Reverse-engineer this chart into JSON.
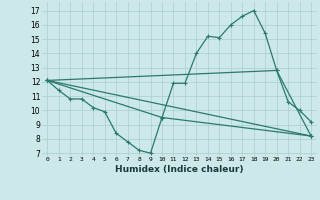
{
  "xlabel": "Humidex (Indice chaleur)",
  "xlim": [
    -0.5,
    23.5
  ],
  "ylim": [
    6.8,
    17.6
  ],
  "yticks": [
    7,
    8,
    9,
    10,
    11,
    12,
    13,
    14,
    15,
    16,
    17
  ],
  "xticks": [
    0,
    1,
    2,
    3,
    4,
    5,
    6,
    7,
    8,
    9,
    10,
    11,
    12,
    13,
    14,
    15,
    16,
    17,
    18,
    19,
    20,
    21,
    22,
    23
  ],
  "bg_color": "#cce8e8",
  "line_color": "#2a7a6a",
  "grid_color": "#aacece",
  "lines": [
    {
      "x": [
        0,
        1,
        2,
        3,
        4,
        5,
        6,
        7,
        8,
        9,
        10,
        11,
        12,
        13,
        14,
        15,
        16,
        17,
        18,
        19,
        20,
        21,
        22,
        23
      ],
      "y": [
        12.1,
        11.4,
        10.8,
        10.8,
        10.2,
        9.9,
        8.4,
        7.8,
        7.2,
        7.0,
        9.5,
        11.9,
        11.9,
        14.0,
        15.2,
        15.1,
        16.0,
        16.6,
        17.0,
        15.4,
        12.8,
        10.6,
        10.0,
        9.2
      ]
    },
    {
      "x": [
        0,
        23
      ],
      "y": [
        12.1,
        8.2
      ]
    },
    {
      "x": [
        0,
        20,
        23
      ],
      "y": [
        12.1,
        12.8,
        8.2
      ]
    },
    {
      "x": [
        0,
        10,
        23
      ],
      "y": [
        12.1,
        9.5,
        8.2
      ]
    }
  ]
}
